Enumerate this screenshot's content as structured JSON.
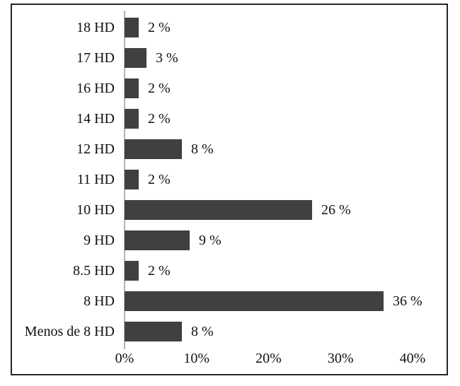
{
  "figure": {
    "background_color": "#ffffff",
    "frame_border_color": "#262626"
  },
  "chart_data": {
    "type": "bar",
    "orientation": "horizontal",
    "title": "",
    "xlabel": "",
    "ylabel": "",
    "categories": [
      "18 HD",
      "17 HD",
      "16 HD",
      "14 HD",
      "12 HD",
      "11 HD",
      "10 HD",
      "9 HD",
      "8.5 HD",
      "8 HD",
      "Menos de 8 HD"
    ],
    "values": [
      2,
      3,
      2,
      2,
      8,
      2,
      26,
      9,
      2,
      36,
      8
    ],
    "data_labels": [
      "2 %",
      "3 %",
      "2 %",
      "2 %",
      "8 %",
      "2 %",
      "26 %",
      "9 %",
      "2 %",
      "36 %",
      "8 %"
    ],
    "x_ticks": [
      {
        "label": "0%",
        "value": 0
      },
      {
        "label": "10%",
        "value": 10
      },
      {
        "label": "20%",
        "value": 20
      },
      {
        "label": "30%",
        "value": 30
      },
      {
        "label": "40%",
        "value": 40
      }
    ],
    "xlim": [
      0,
      40
    ],
    "bar_color": "#404040",
    "axis_line_color": "#b3b3b3",
    "text_color": "#111111",
    "grid": false,
    "legend": false
  }
}
